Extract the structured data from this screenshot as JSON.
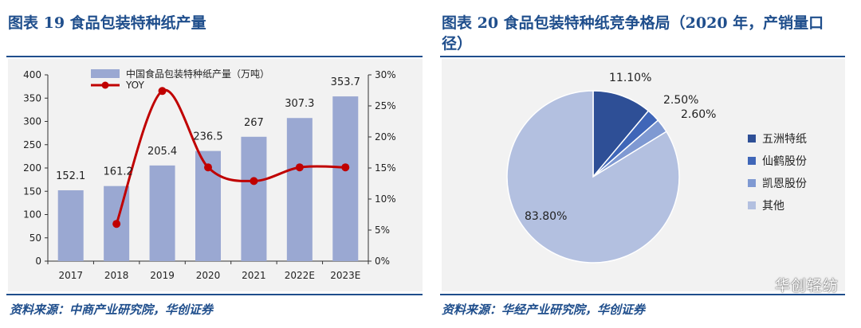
{
  "left": {
    "title": "图表 19 食品包装特种纸产量",
    "source": "资料来源：中商产业研究院，华创证券"
  },
  "right": {
    "title": "图表 20 食品包装特种纸竞争格局（2020 年，产销量口径）",
    "source": "资料来源：华经产业研究院，华创证券"
  },
  "watermark": "华创轻纺",
  "colors": {
    "title_blue": "#1f4e8c",
    "bar": "#9aa8d2",
    "line": "#c00000",
    "pie": [
      "#2e4f96",
      "#3f66b8",
      "#7f99d2",
      "#b3c0e0"
    ]
  },
  "chart_data": [
    {
      "type": "bar",
      "categories": [
        "2017",
        "2018",
        "2019",
        "2020",
        "2021",
        "2022E",
        "2023E"
      ],
      "series": [
        {
          "name": "中国食品包装特种纸产量（万吨）",
          "type": "bar",
          "axis": "left",
          "values": [
            152.1,
            161.2,
            205.4,
            236.5,
            267,
            307.3,
            353.7
          ],
          "labels": [
            "152.1",
            "161.2",
            "205.4",
            "236.5",
            "267",
            "307.3",
            "353.7"
          ]
        },
        {
          "name": "YOY",
          "type": "line",
          "axis": "right",
          "values": [
            null,
            6.0,
            27.4,
            15.1,
            12.9,
            15.1,
            15.1
          ]
        }
      ],
      "y_left": {
        "lim": [
          0,
          400
        ],
        "ticks": [
          "0",
          "50",
          "100",
          "150",
          "200",
          "250",
          "300",
          "350",
          "400"
        ]
      },
      "y_right": {
        "lim": [
          0,
          30
        ],
        "ticks": [
          "0%",
          "5%",
          "10%",
          "15%",
          "20%",
          "25%",
          "30%"
        ]
      },
      "legend_position": "top-left",
      "grid": false
    },
    {
      "type": "pie",
      "slices": [
        {
          "label": "五洲特纸",
          "value": 11.1,
          "text": "11.10%"
        },
        {
          "label": "仙鹤股份",
          "value": 2.5,
          "text": "2.50%"
        },
        {
          "label": "凯恩股份",
          "value": 2.6,
          "text": "2.60%"
        },
        {
          "label": "其他",
          "value": 83.8,
          "text": "83.80%"
        }
      ],
      "start_angle": "12 o'clock",
      "direction": "clockwise",
      "legend_position": "right"
    }
  ]
}
